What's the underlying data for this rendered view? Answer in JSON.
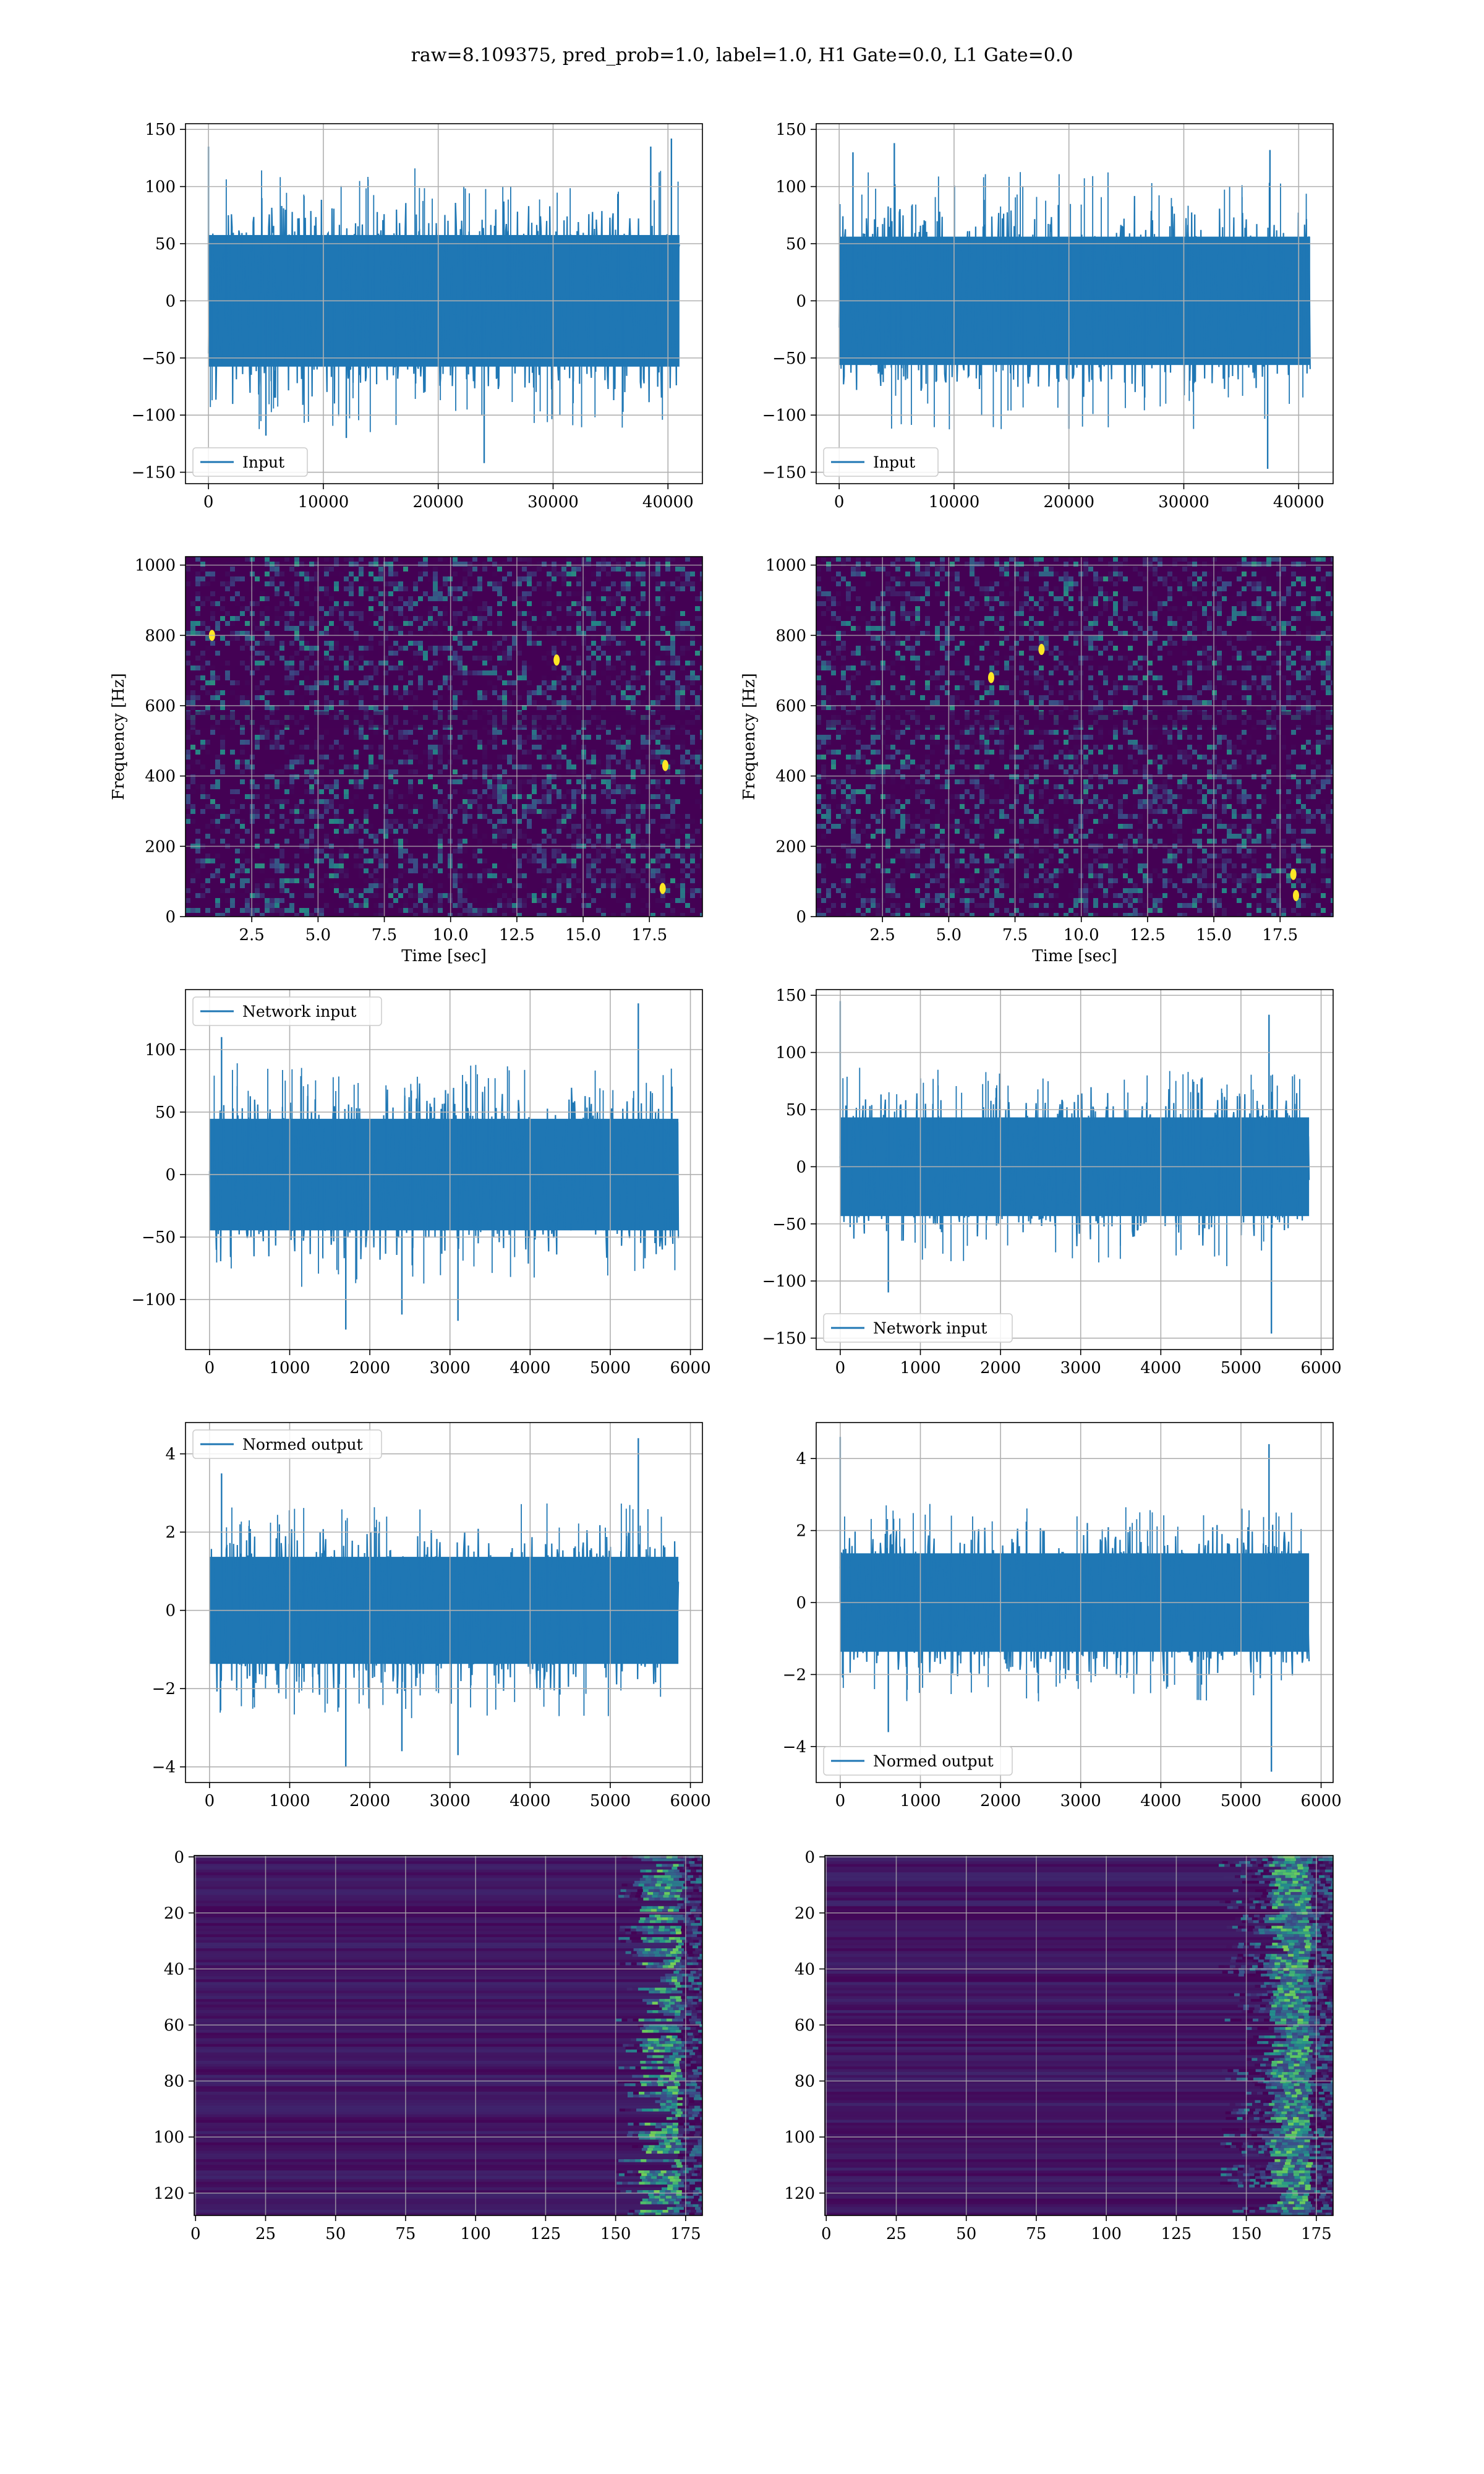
{
  "figure": {
    "title": "raw=8.109375, pred_prob=1.0, label=1.0, H1 Gate=0.0, L1 Gate=0.0"
  },
  "colors": {
    "line": "#1f77b4",
    "grid": "#b0b0b0",
    "viridis_low": "#440154",
    "viridis_mid": "#21908d",
    "viridis_high": "#fde725"
  },
  "chart_data": [
    {
      "id": "h1-input",
      "type": "line",
      "legend": "Input",
      "legend_loc": "lower-left",
      "xlim": [
        -2000,
        43000
      ],
      "ylim": [
        -160,
        155
      ],
      "xticks": [
        0,
        10000,
        20000,
        30000,
        40000
      ],
      "yticks": [
        -150,
        -100,
        -50,
        0,
        50,
        100,
        150
      ],
      "x_range": [
        0,
        41000
      ],
      "envelope": {
        "typical": 80,
        "peaks": [
          [
            0,
            135
          ],
          [
            24000,
            -142
          ],
          [
            38500,
            135
          ],
          [
            40300,
            142
          ],
          [
            5000,
            -118
          ],
          [
            12000,
            -120
          ]
        ]
      },
      "grid": true
    },
    {
      "id": "l1-input",
      "type": "line",
      "legend": "Input",
      "legend_loc": "lower-left",
      "xlim": [
        -2000,
        43000
      ],
      "ylim": [
        -160,
        155
      ],
      "xticks": [
        0,
        10000,
        20000,
        30000,
        40000
      ],
      "yticks": [
        -150,
        -100,
        -50,
        0,
        50,
        100,
        150
      ],
      "x_range": [
        0,
        41000
      ],
      "envelope": {
        "typical": 78,
        "peaks": [
          [
            4800,
            138
          ],
          [
            37300,
            -147
          ],
          [
            37500,
            132
          ],
          [
            1200,
            130
          ],
          [
            20000,
            -112
          ]
        ]
      },
      "grid": true
    },
    {
      "id": "h1-spectrogram",
      "type": "heatmap",
      "xlabel": "Time [sec]",
      "ylabel": "Frequency [Hz]",
      "xlim": [
        0,
        19.5
      ],
      "ylim": [
        0,
        1024
      ],
      "xticks": [
        2.5,
        5.0,
        7.5,
        10.0,
        12.5,
        15.0,
        17.5
      ],
      "yticks": [
        0,
        200,
        400,
        600,
        800,
        1000
      ],
      "colormap": "viridis",
      "hotspots": [
        [
          18.0,
          80
        ],
        [
          18.1,
          430
        ],
        [
          14.0,
          730
        ],
        [
          1.0,
          800
        ]
      ],
      "grid": true
    },
    {
      "id": "l1-spectrogram",
      "type": "heatmap",
      "xlabel": "Time [sec]",
      "ylabel": "Frequency [Hz]",
      "xlim": [
        0,
        19.5
      ],
      "ylim": [
        0,
        1024
      ],
      "xticks": [
        2.5,
        5.0,
        7.5,
        10.0,
        12.5,
        15.0,
        17.5
      ],
      "yticks": [
        0,
        200,
        400,
        600,
        800,
        1000
      ],
      "colormap": "viridis",
      "hotspots": [
        [
          18.0,
          120
        ],
        [
          18.1,
          60
        ],
        [
          8.5,
          760
        ],
        [
          6.6,
          680
        ]
      ],
      "grid": true
    },
    {
      "id": "h1-network-input",
      "type": "line",
      "legend": "Network input",
      "legend_loc": "upper-left",
      "xlim": [
        -300,
        6150
      ],
      "ylim": [
        -140,
        148
      ],
      "xticks": [
        0,
        1000,
        2000,
        3000,
        4000,
        5000,
        6000
      ],
      "yticks": [
        -100,
        -50,
        0,
        50,
        100
      ],
      "x_range": [
        0,
        5850
      ],
      "envelope": {
        "typical": 62,
        "peaks": [
          [
            5350,
            137
          ],
          [
            1700,
            -124
          ],
          [
            2400,
            -112
          ],
          [
            3100,
            -117
          ],
          [
            150,
            110
          ]
        ]
      },
      "grid": true
    },
    {
      "id": "l1-network-input",
      "type": "line",
      "legend": "Network input",
      "legend_loc": "lower-left",
      "xlim": [
        -300,
        6150
      ],
      "ylim": [
        -160,
        155
      ],
      "xticks": [
        0,
        1000,
        2000,
        3000,
        4000,
        5000,
        6000
      ],
      "yticks": [
        -150,
        -100,
        -50,
        0,
        50,
        100,
        150
      ],
      "x_range": [
        0,
        5850
      ],
      "envelope": {
        "typical": 60,
        "peaks": [
          [
            0,
            145
          ],
          [
            5350,
            133
          ],
          [
            5380,
            -146
          ],
          [
            600,
            -110
          ]
        ]
      },
      "grid": true
    },
    {
      "id": "h1-normed-output",
      "type": "line",
      "legend": "Normed output",
      "legend_loc": "upper-left",
      "xlim": [
        -300,
        6150
      ],
      "ylim": [
        -4.4,
        4.8
      ],
      "xticks": [
        0,
        1000,
        2000,
        3000,
        4000,
        5000,
        6000
      ],
      "yticks": [
        -4,
        -2,
        0,
        2,
        4
      ],
      "x_range": [
        0,
        5850
      ],
      "envelope": {
        "typical": 1.9,
        "peaks": [
          [
            5350,
            4.4
          ],
          [
            1700,
            -4.0
          ],
          [
            2400,
            -3.6
          ],
          [
            3100,
            -3.7
          ],
          [
            150,
            3.5
          ]
        ]
      },
      "grid": true
    },
    {
      "id": "l1-normed-output",
      "type": "line",
      "legend": "Normed output",
      "legend_loc": "lower-left",
      "xlim": [
        -300,
        6150
      ],
      "ylim": [
        -5.0,
        5.0
      ],
      "xticks": [
        0,
        1000,
        2000,
        3000,
        4000,
        5000,
        6000
      ],
      "yticks": [
        -4,
        -2,
        0,
        2,
        4
      ],
      "x_range": [
        0,
        5850
      ],
      "envelope": {
        "typical": 1.9,
        "peaks": [
          [
            0,
            4.6
          ],
          [
            5350,
            4.4
          ],
          [
            5380,
            -4.7
          ],
          [
            600,
            -3.6
          ]
        ]
      },
      "grid": true
    },
    {
      "id": "h1-feature-map",
      "type": "heatmap",
      "xlim": [
        -0.5,
        181
      ],
      "ylim": [
        128,
        -0.5
      ],
      "xticks": [
        0,
        25,
        50,
        75,
        100,
        125,
        150,
        175
      ],
      "yticks": [
        0,
        20,
        40,
        60,
        80,
        100,
        120
      ],
      "colormap": "viridis",
      "active_columns": [
        150,
        181
      ],
      "grid": true
    },
    {
      "id": "l1-feature-map",
      "type": "heatmap",
      "xlim": [
        -0.5,
        181
      ],
      "ylim": [
        128,
        -0.5
      ],
      "xticks": [
        0,
        25,
        50,
        75,
        100,
        125,
        150,
        175
      ],
      "yticks": [
        0,
        20,
        40,
        60,
        80,
        100,
        120
      ],
      "colormap": "viridis",
      "active_columns": [
        140,
        181
      ],
      "grid": true
    }
  ]
}
